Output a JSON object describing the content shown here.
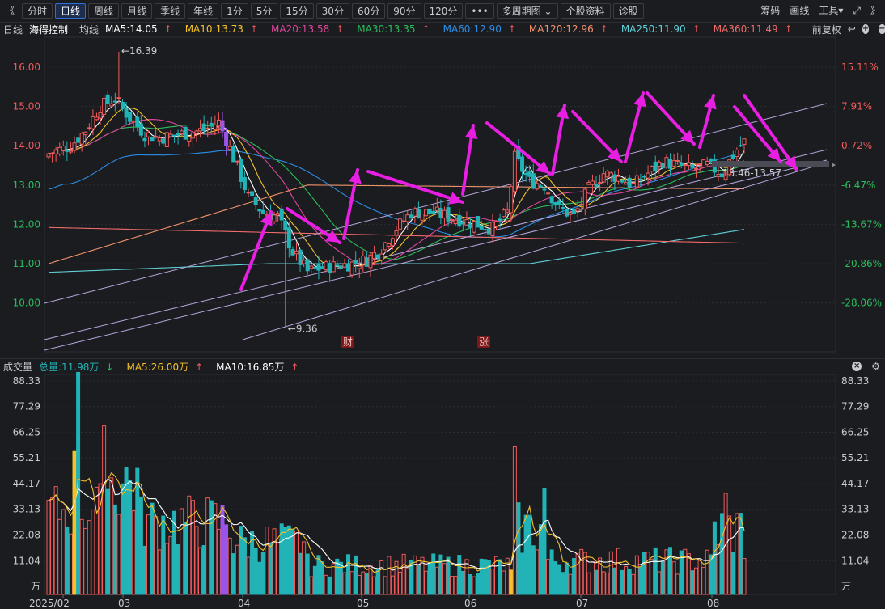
{
  "toolbar": {
    "collapse_icon": "double-chevron-left-icon",
    "periods": [
      "分时",
      "日线",
      "周线",
      "月线",
      "季线",
      "年线",
      "1分",
      "5分",
      "15分",
      "30分",
      "60分",
      "90分",
      "120分"
    ],
    "active_period": "日线",
    "more_label": "•••",
    "multi_period_label": "多周期图",
    "stock_info_label": "个股资料",
    "diagnose_label": "诊股",
    "chips_label": "筹码",
    "draw_label": "画线",
    "tools_label": "工具",
    "fullscreen_icon": "fullscreen-icon",
    "collapse_right_icon": "double-chevron-right-icon"
  },
  "price_panel": {
    "period_label": "日线",
    "stock_name": "海得控制",
    "avg_label": "均线",
    "ma_items": [
      {
        "label": "MA5:14.05",
        "color": "#ffffff",
        "dir": "↑"
      },
      {
        "label": "MA10:13.73",
        "color": "#f3c12b",
        "dir": "↑"
      },
      {
        "label": "MA20:13.58",
        "color": "#e0469c",
        "dir": "↑"
      },
      {
        "label": "MA30:13.35",
        "color": "#2bbd5c",
        "dir": "↑"
      },
      {
        "label": "MA60:12.90",
        "color": "#2a8ee6",
        "dir": "↑"
      },
      {
        "label": "MA120:12.96",
        "color": "#f0916b",
        "dir": "↑"
      },
      {
        "label": "MA250:11.90",
        "color": "#5fd0d6",
        "dir": "↑"
      },
      {
        "label": "MA360:11.49",
        "color": "#f06a6a",
        "dir": "↑"
      }
    ],
    "adjust_label": "前复权",
    "left_axis": [
      "16.00",
      "15.00",
      "14.00",
      "13.00",
      "12.00",
      "11.00",
      "10.00"
    ],
    "right_axis": [
      "15.11%",
      "7.91%",
      "0.72%",
      "-6.47%",
      "-13.67%",
      "-20.86%",
      "-28.06%"
    ],
    "high_marker": "16.39",
    "low_marker": "9.36",
    "zone_label": "13.46-13.57",
    "event_tags": [
      "财",
      "涨"
    ]
  },
  "volume_panel": {
    "title": "成交量",
    "total_label": "总量:11.98万",
    "ma5_label": "MA5:26.00万",
    "ma10_label": "MA10:16.85万",
    "axis": [
      "88.33",
      "77.29",
      "66.25",
      "55.21",
      "44.17",
      "33.13",
      "22.08",
      "11.04"
    ],
    "unit": "万",
    "x_labels": [
      "2025/02",
      "03",
      "04",
      "05",
      "06",
      "07",
      "08"
    ]
  },
  "colors": {
    "up": "#f05a5a",
    "down": "#22b3b7",
    "purple_candle": "#9a55e8",
    "arrow": "#e81ee3",
    "grid": "#2a2c31",
    "channel": "#b9a7dc"
  },
  "chart_data": {
    "type": "candlestick",
    "title": "海得控制 日线",
    "ylim": [
      9.0,
      16.5
    ],
    "y_ticks": [
      10,
      11,
      12,
      13,
      14,
      15,
      16
    ],
    "x_months": [
      "2025/02",
      "03",
      "04",
      "05",
      "06",
      "07",
      "08"
    ],
    "price_high": 16.39,
    "price_low": 9.36,
    "last_close_approx": 14.0,
    "ma_last": {
      "MA5": 14.05,
      "MA10": 13.73,
      "MA20": 13.58,
      "MA30": 13.35,
      "MA60": 12.9,
      "MA120": 12.96,
      "MA250": 11.9,
      "MA360": 11.49
    },
    "volume_ylim": [
      0,
      92
    ],
    "volume_ticks": [
      11.04,
      22.08,
      33.13,
      44.17,
      55.21,
      66.25,
      77.29,
      88.33
    ],
    "volume_last": 11.98,
    "volume_ma5": 26.0,
    "volume_ma10": 16.85
  }
}
